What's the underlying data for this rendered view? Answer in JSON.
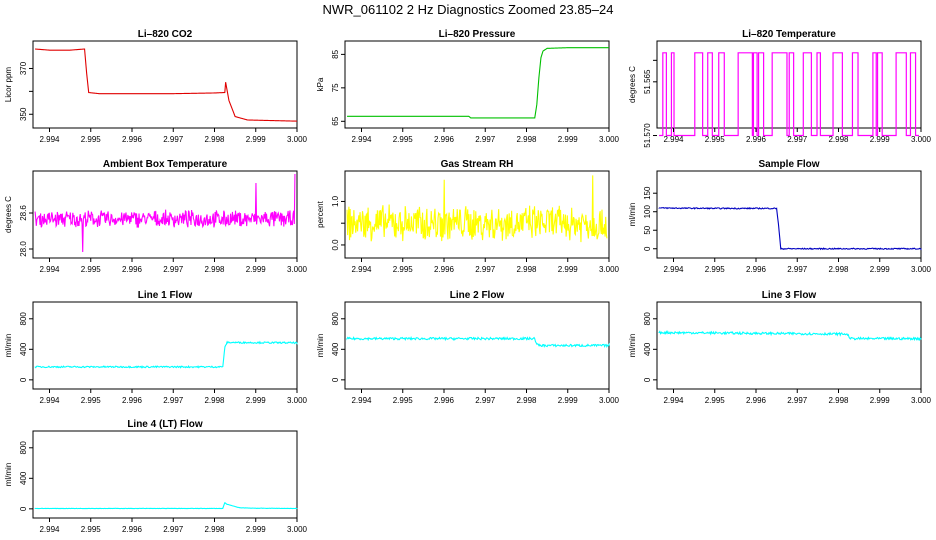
{
  "title": "NWR_061102  2 Hz Diagnostics Zoomed 23.85–24",
  "chart_data": [
    {
      "id": "co2",
      "type": "line",
      "title": "Li–820 CO2",
      "ylabel": "Licor ppm",
      "color": "#e00000",
      "xlim": [
        2.9936,
        3.0
      ],
      "ylim": [
        344,
        382
      ],
      "yticks": [
        350,
        360,
        370
      ],
      "yticklabels": [
        "350",
        "",
        "370"
      ],
      "xticks": [
        2.994,
        2.995,
        2.996,
        2.997,
        2.998,
        2.999,
        3.0
      ],
      "xticklabels": [
        "2.994",
        "2.995",
        "2.996",
        "2.997",
        "2.998",
        "2.999",
        "3.000"
      ],
      "series": [
        {
          "name": "CO2",
          "x": [
            2.99365,
            2.994,
            2.9945,
            2.99485,
            2.9949,
            2.99495,
            2.9952,
            2.996,
            2.997,
            2.998,
            2.99825,
            2.99827,
            2.99835,
            2.9985,
            2.9988,
            2.9995,
            3.0
          ],
          "values": [
            378.5,
            378,
            378,
            378.5,
            368,
            359.5,
            359,
            359,
            359,
            359.3,
            359.5,
            364,
            356,
            349,
            347.5,
            347.2,
            347
          ]
        }
      ]
    },
    {
      "id": "pressure",
      "type": "line",
      "title": "Li–820 Pressure",
      "ylabel": "kPa",
      "color": "#00c000",
      "xlim": [
        2.9936,
        3.0
      ],
      "ylim": [
        63,
        89
      ],
      "yticks": [
        65,
        75,
        85
      ],
      "yticklabels": [
        "65",
        "75",
        "85"
      ],
      "xticks": [
        2.994,
        2.995,
        2.996,
        2.997,
        2.998,
        2.999,
        3.0
      ],
      "xticklabels": [
        "2.994",
        "2.995",
        "2.996",
        "2.997",
        "2.998",
        "2.999",
        "3.000"
      ],
      "series": [
        {
          "name": "Pressure",
          "x": [
            2.99365,
            2.9966,
            2.99665,
            2.9982,
            2.99825,
            2.9983,
            2.99835,
            2.9984,
            2.9985,
            2.999,
            3.0
          ],
          "values": [
            66.5,
            66.5,
            66,
            66,
            70,
            78,
            84,
            86,
            86.8,
            87,
            87
          ]
        }
      ]
    },
    {
      "id": "li820temp",
      "type": "line",
      "title": "Li–820 Temperature",
      "ylabel": "degrees C",
      "color": "#ff00ff",
      "xlim": [
        2.9936,
        3.0
      ],
      "ylim": [
        51.5693,
        51.5612
      ],
      "yticks": [
        51.57,
        51.565,
        51.563
      ],
      "yticklabels": [
        "51.570",
        "51.565",
        ""
      ],
      "xticks": [
        2.994,
        2.995,
        2.996,
        2.997,
        2.998,
        2.999,
        3.0
      ],
      "xticklabels": [
        "2.994",
        "2.995",
        "2.996",
        "2.997",
        "2.998",
        "2.999",
        "3.000"
      ],
      "series": [
        {
          "name": "Temperature",
          "kind": "binary",
          "levels": [
            51.57,
            51.5623
          ],
          "x_start": 2.99365,
          "x_end": 2.99995
        }
      ]
    },
    {
      "id": "ambient",
      "type": "line",
      "title": "Ambient Box Temperature",
      "ylabel": "degrees C",
      "color": "#ff00ff",
      "xlim": [
        2.9936,
        3.0
      ],
      "ylim": [
        27.85,
        29.3
      ],
      "yticks": [
        28.0,
        28.6
      ],
      "yticklabels": [
        "28.0",
        "28.6"
      ],
      "xticks": [
        2.994,
        2.995,
        2.996,
        2.997,
        2.998,
        2.999,
        3.0
      ],
      "xticklabels": [
        "2.994",
        "2.995",
        "2.996",
        "2.997",
        "2.998",
        "2.999",
        "3.000"
      ],
      "series": [
        {
          "name": "Ambient",
          "kind": "noise",
          "mean": 28.5,
          "amp": 0.12,
          "spikes": [
            [
              2.9948,
              27.95
            ],
            [
              2.999,
              29.1
            ],
            [
              2.99995,
              29.25
            ]
          ],
          "x_start": 2.99365,
          "x_end": 2.99995
        }
      ]
    },
    {
      "id": "rh",
      "type": "line",
      "title": "Gas Stream RH",
      "ylabel": "percent",
      "color": "#ffff00",
      "xlim": [
        2.9936,
        3.0
      ],
      "ylim": [
        -0.3,
        1.7
      ],
      "yticks": [
        0.0,
        0.5,
        1.0
      ],
      "yticklabels": [
        "0.0",
        "",
        "1.0"
      ],
      "xticks": [
        2.994,
        2.995,
        2.996,
        2.997,
        2.998,
        2.999,
        3.0
      ],
      "xticklabels": [
        "2.994",
        "2.995",
        "2.996",
        "2.997",
        "2.998",
        "2.999",
        "3.000"
      ],
      "series": [
        {
          "name": "RH",
          "kind": "noise",
          "mean": 0.5,
          "amp": 0.35,
          "spikes": [
            [
              2.996,
              1.5
            ],
            [
              2.9996,
              1.6
            ]
          ],
          "x_start": 2.99365,
          "x_end": 2.99995
        }
      ]
    },
    {
      "id": "sample",
      "type": "line",
      "title": "Sample Flow",
      "ylabel": "ml/min",
      "color": "#0000c0",
      "xlim": [
        2.9936,
        3.0
      ],
      "ylim": [
        -25,
        210
      ],
      "yticks": [
        0,
        50,
        100,
        150
      ],
      "yticklabels": [
        "0",
        "50",
        "100",
        "150"
      ],
      "xticks": [
        2.994,
        2.995,
        2.996,
        2.997,
        2.998,
        2.999,
        3.0
      ],
      "xticklabels": [
        "2.994",
        "2.995",
        "2.996",
        "2.997",
        "2.998",
        "2.999",
        "3.000"
      ],
      "series": [
        {
          "name": "Sample",
          "x": [
            2.99365,
            2.995,
            2.9965,
            2.99655,
            2.9966,
            3.0
          ],
          "values": [
            110,
            109,
            109,
            60,
            0,
            0
          ],
          "noise": 1.5
        }
      ]
    },
    {
      "id": "line1",
      "type": "line",
      "title": "Line 1 Flow",
      "ylabel": "ml/min",
      "color": "#00ffff",
      "xlim": [
        2.9936,
        3.0
      ],
      "ylim": [
        -120,
        1020
      ],
      "yticks": [
        0,
        400,
        800
      ],
      "yticklabels": [
        "0",
        "400",
        "800"
      ],
      "xticks": [
        2.994,
        2.995,
        2.996,
        2.997,
        2.998,
        2.999,
        3.0
      ],
      "xticklabels": [
        "2.994",
        "2.995",
        "2.996",
        "2.997",
        "2.998",
        "2.999",
        "3.000"
      ],
      "series": [
        {
          "name": "Line 1",
          "x": [
            2.99365,
            2.9982,
            2.99825,
            2.9983,
            3.0
          ],
          "values": [
            170,
            170,
            420,
            490,
            485
          ],
          "noise": 10
        }
      ]
    },
    {
      "id": "line2",
      "type": "line",
      "title": "Line 2 Flow",
      "ylabel": "ml/min",
      "color": "#00ffff",
      "xlim": [
        2.9936,
        3.0
      ],
      "ylim": [
        -120,
        1020
      ],
      "yticks": [
        0,
        400,
        800
      ],
      "yticklabels": [
        "0",
        "400",
        "800"
      ],
      "xticks": [
        2.994,
        2.995,
        2.996,
        2.997,
        2.998,
        2.999,
        3.0
      ],
      "xticklabels": [
        "2.994",
        "2.995",
        "2.996",
        "2.997",
        "2.998",
        "2.999",
        "3.000"
      ],
      "series": [
        {
          "name": "Line 2",
          "x": [
            2.99365,
            2.9982,
            2.99825,
            2.9983,
            3.0
          ],
          "values": [
            540,
            540,
            470,
            450,
            450
          ],
          "noise": 15
        }
      ]
    },
    {
      "id": "line3",
      "type": "line",
      "title": "Line 3 Flow",
      "ylabel": "ml/min",
      "color": "#00ffff",
      "xlim": [
        2.9936,
        3.0
      ],
      "ylim": [
        -120,
        1020
      ],
      "yticks": [
        0,
        400,
        800
      ],
      "yticklabels": [
        "0",
        "400",
        "800"
      ],
      "xticks": [
        2.994,
        2.995,
        2.996,
        2.997,
        2.998,
        2.999,
        3.0
      ],
      "xticklabels": [
        "2.994",
        "2.995",
        "2.996",
        "2.997",
        "2.998",
        "2.999",
        "3.000"
      ],
      "series": [
        {
          "name": "Line 3",
          "x": [
            2.99365,
            2.9982,
            2.99825,
            2.9983,
            3.0
          ],
          "values": [
            620,
            600,
            570,
            540,
            540
          ],
          "noise": 15
        }
      ]
    },
    {
      "id": "line4",
      "type": "line",
      "title": "Line 4 (LT) Flow",
      "ylabel": "ml/min",
      "color": "#00ffff",
      "xlim": [
        2.9936,
        3.0
      ],
      "ylim": [
        -120,
        1020
      ],
      "yticks": [
        0,
        400,
        800
      ],
      "yticklabels": [
        "0",
        "400",
        "800"
      ],
      "xticks": [
        2.994,
        2.995,
        2.996,
        2.997,
        2.998,
        2.999,
        3.0
      ],
      "xticklabels": [
        "2.994",
        "2.995",
        "2.996",
        "2.997",
        "2.998",
        "2.999",
        "3.000"
      ],
      "series": [
        {
          "name": "Line 4",
          "x": [
            2.99365,
            2.9982,
            2.99825,
            2.9983,
            2.9986,
            2.999,
            3.0
          ],
          "values": [
            5,
            5,
            80,
            60,
            15,
            8,
            5
          ],
          "noise": 2
        }
      ]
    }
  ]
}
